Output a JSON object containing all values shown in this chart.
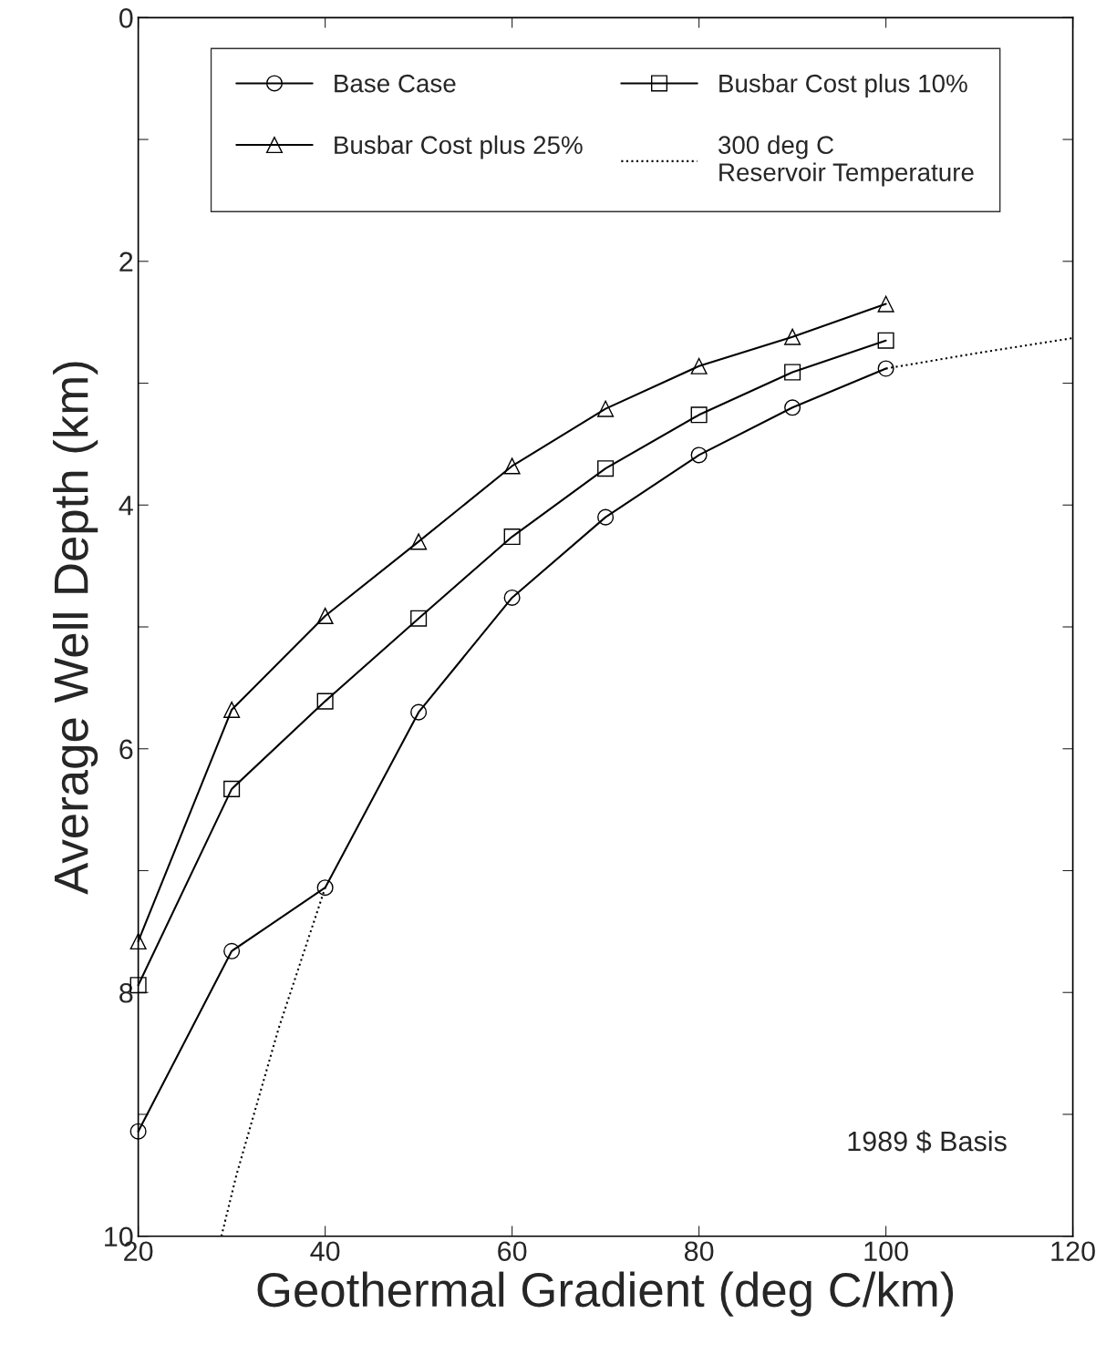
{
  "chart_data": {
    "type": "line",
    "xlabel": "Geothermal Gradient (deg C/km)",
    "ylabel": "Average Well Depth (km)",
    "xlim": [
      20,
      120
    ],
    "xticks": [
      20,
      40,
      60,
      80,
      100,
      120
    ],
    "ylim": [
      10,
      0
    ],
    "yticks": [
      0,
      {
        "value": 1,
        "label": null
      },
      2,
      {
        "value": 3,
        "label": null
      },
      4,
      {
        "value": 5,
        "label": null
      },
      6,
      {
        "value": 7,
        "label": null
      },
      8,
      {
        "value": 9,
        "label": null
      },
      10
    ],
    "grid": false,
    "legend": "top",
    "annotations": [
      "1989 $ Basis"
    ],
    "series": [
      {
        "name": "Base Case",
        "color": "#000000",
        "marker": "circle",
        "x": [
          20,
          30,
          40,
          50,
          60,
          70,
          80,
          90,
          100
        ],
        "values": [
          9.14,
          7.66,
          7.14,
          5.7,
          4.76,
          4.1,
          3.59,
          3.2,
          2.88
        ]
      },
      {
        "name": "Busbar Cost plus 10%",
        "color": "#000000",
        "marker": "square",
        "x": [
          20,
          30,
          40,
          50,
          60,
          70,
          80,
          90,
          100
        ],
        "values": [
          7.94,
          6.33,
          5.61,
          4.93,
          4.26,
          3.7,
          3.26,
          2.91,
          2.65
        ]
      },
      {
        "name": "Busbar Cost plus 25%",
        "color": "#000000",
        "marker": "triangle",
        "x": [
          20,
          30,
          40,
          50,
          60,
          70,
          80,
          90,
          100
        ],
        "values": [
          7.58,
          5.68,
          4.91,
          4.3,
          3.68,
          3.21,
          2.86,
          2.62,
          2.35
        ]
      },
      {
        "name": "300 deg C\nReservoir Temperature",
        "color": "#000000",
        "marker": "none",
        "line_style": "dotted",
        "x": [
          28.9,
          30.5,
          35,
          40,
          70,
          100,
          110,
          120
        ],
        "values": [
          10,
          9.5,
          8.3,
          7.14,
          null,
          2.88,
          2.75,
          2.63
        ]
      }
    ]
  }
}
